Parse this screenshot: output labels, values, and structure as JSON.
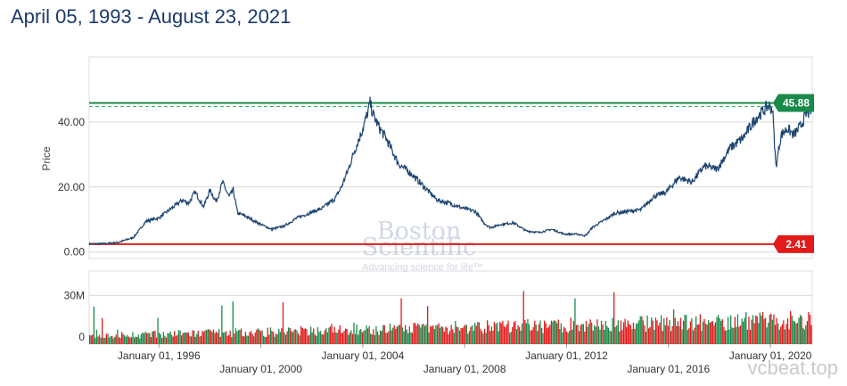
{
  "header": {
    "date_range": "April 05, 1993 - August 23, 2021"
  },
  "chart_data": {
    "type": "line",
    "ylabel": "Price",
    "ylim": [
      -2,
      60
    ],
    "yticks": [
      {
        "value": 0,
        "label": "0.00"
      },
      {
        "value": 20,
        "label": "20.00"
      },
      {
        "value": 40,
        "label": "40.00"
      }
    ],
    "xticks": [
      {
        "date": "1996-01-01",
        "label": "January 01, 1996"
      },
      {
        "date": "2000-01-01",
        "label": "January 01, 2000"
      },
      {
        "date": "2004-01-01",
        "label": "January 01, 2004"
      },
      {
        "date": "2008-01-01",
        "label": "January 01, 2008"
      },
      {
        "date": "2012-01-01",
        "label": "January 01, 2012"
      },
      {
        "date": "2016-01-01",
        "label": "January 01, 2016"
      },
      {
        "date": "2020-01-01",
        "label": "January 01, 2020"
      }
    ],
    "series": [
      {
        "points": [
          [
            "1993-04-05",
            2.5
          ],
          [
            "1993-12-01",
            2.6
          ],
          [
            "1994-06-01",
            3.0
          ],
          [
            "1995-01-01",
            4.5
          ],
          [
            "1995-07-01",
            9.5
          ],
          [
            "1996-01-01",
            10.5
          ],
          [
            "1996-06-01",
            13.0
          ],
          [
            "1996-12-01",
            16.0
          ],
          [
            "1997-03-01",
            15.0
          ],
          [
            "1997-06-01",
            18.5
          ],
          [
            "1997-10-01",
            14.0
          ],
          [
            "1998-01-01",
            19.0
          ],
          [
            "1998-04-01",
            15.5
          ],
          [
            "1998-07-01",
            21.5
          ],
          [
            "1998-10-01",
            17.0
          ],
          [
            "1998-12-01",
            19.0
          ],
          [
            "1999-02-01",
            12.0
          ],
          [
            "1999-06-01",
            11.0
          ],
          [
            "1999-10-01",
            9.5
          ],
          [
            "2000-01-01",
            8.5
          ],
          [
            "2000-06-01",
            7.0
          ],
          [
            "2000-12-01",
            8.0
          ],
          [
            "2001-06-01",
            10.5
          ],
          [
            "2001-12-01",
            12.0
          ],
          [
            "2002-06-01",
            13.5
          ],
          [
            "2002-12-01",
            16.5
          ],
          [
            "2003-03-01",
            20.0
          ],
          [
            "2003-06-01",
            25.0
          ],
          [
            "2003-09-01",
            31.0
          ],
          [
            "2003-12-01",
            36.0
          ],
          [
            "2004-03-01",
            42.0
          ],
          [
            "2004-04-15",
            45.88
          ],
          [
            "2004-06-01",
            42.0
          ],
          [
            "2004-09-01",
            38.0
          ],
          [
            "2004-12-01",
            35.0
          ],
          [
            "2005-03-01",
            31.0
          ],
          [
            "2005-06-01",
            27.0
          ],
          [
            "2005-12-01",
            24.0
          ],
          [
            "2006-06-01",
            20.0
          ],
          [
            "2006-12-01",
            16.0
          ],
          [
            "2007-06-01",
            15.0
          ],
          [
            "2007-12-01",
            13.5
          ],
          [
            "2008-06-01",
            12.5
          ],
          [
            "2008-10-01",
            9.0
          ],
          [
            "2009-01-01",
            7.5
          ],
          [
            "2009-06-01",
            8.5
          ],
          [
            "2009-12-01",
            9.0
          ],
          [
            "2010-06-01",
            6.5
          ],
          [
            "2010-12-01",
            6.0
          ],
          [
            "2011-06-01",
            7.0
          ],
          [
            "2011-12-01",
            5.5
          ],
          [
            "2012-06-01",
            5.5
          ],
          [
            "2012-10-01",
            5.0
          ],
          [
            "2013-01-01",
            7.5
          ],
          [
            "2013-06-01",
            9.5
          ],
          [
            "2013-12-01",
            12.0
          ],
          [
            "2014-06-01",
            12.5
          ],
          [
            "2014-12-01",
            13.0
          ],
          [
            "2015-06-01",
            17.0
          ],
          [
            "2015-12-01",
            18.5
          ],
          [
            "2016-06-01",
            23.0
          ],
          [
            "2016-12-01",
            21.5
          ],
          [
            "2017-06-01",
            26.5
          ],
          [
            "2017-12-01",
            25.5
          ],
          [
            "2018-06-01",
            32.0
          ],
          [
            "2018-12-01",
            35.0
          ],
          [
            "2019-06-01",
            41.0
          ],
          [
            "2019-12-01",
            45.0
          ],
          [
            "2020-02-01",
            44.0
          ],
          [
            "2020-03-20",
            26.0
          ],
          [
            "2020-06-01",
            36.0
          ],
          [
            "2020-09-01",
            38.0
          ],
          [
            "2020-12-01",
            36.0
          ],
          [
            "2021-03-01",
            38.5
          ],
          [
            "2021-06-01",
            42.5
          ],
          [
            "2021-08-23",
            44.0
          ]
        ]
      }
    ],
    "reference_lines": [
      {
        "value": 45.88,
        "label": "45.88",
        "color": "#1a8a4a"
      },
      {
        "value": 2.41,
        "label": "2.41",
        "color": "#e11b1b"
      }
    ],
    "volume": {
      "ylim": [
        0,
        45
      ],
      "yticks": [
        {
          "value": 0,
          "label": "0"
        },
        {
          "value": 30,
          "label": "30M"
        }
      ],
      "colors": {
        "up": "#1a8a4a",
        "down": "#e11b1b"
      }
    },
    "colors": {
      "line": "#1c4470",
      "grid": "#d9d9d9"
    }
  },
  "watermark": {
    "line1": "Boston",
    "line2": "Scientific",
    "tagline": "Advancing science for life™"
  },
  "corner_mark": "vcbeat.top"
}
